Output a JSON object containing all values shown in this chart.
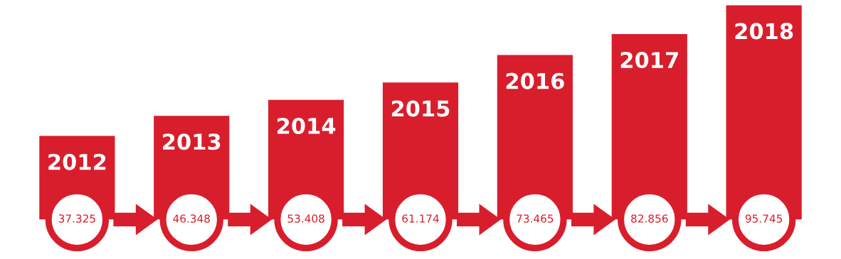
{
  "chart_data": {
    "type": "bar",
    "categories": [
      "2012",
      "2013",
      "2014",
      "2015",
      "2016",
      "2017",
      "2018"
    ],
    "values": [
      37.325,
      46.348,
      53.408,
      61.174,
      73.465,
      82.856,
      95.745
    ],
    "value_labels": [
      "37.325",
      "46.348",
      "53.408",
      "61.174",
      "73.465",
      "82.856",
      "95.745"
    ],
    "color": "#d81e2c"
  }
}
